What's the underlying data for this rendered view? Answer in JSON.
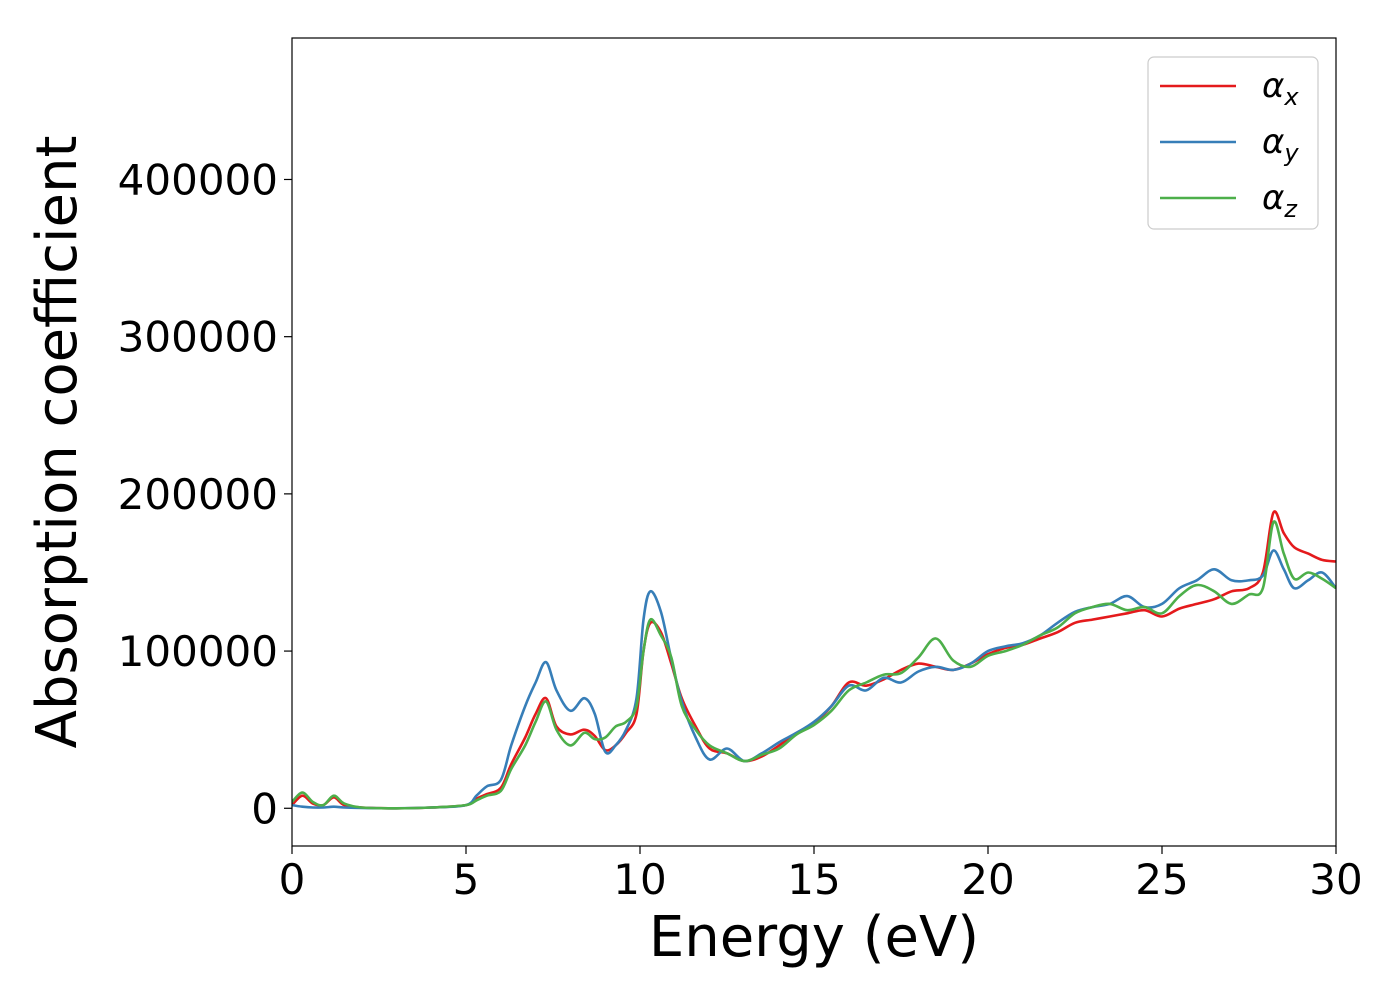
{
  "chart_data": {
    "type": "line",
    "title": "",
    "xlabel": "Energy (eV)",
    "ylabel": "Absorption coefficient",
    "xlim": [
      0,
      30
    ],
    "ylim": [
      -24000,
      490000
    ],
    "xticks": [
      0,
      5,
      10,
      15,
      20,
      25,
      30
    ],
    "yticks": [
      0,
      100000,
      200000,
      300000,
      400000
    ],
    "grid": false,
    "legend_position": "top-right",
    "series": [
      {
        "name": "αx",
        "symbol": "α",
        "subscript": "x",
        "color": "#e41a1c",
        "x": [
          0,
          0.3,
          0.6,
          0.9,
          1.2,
          1.5,
          2,
          3,
          4,
          5,
          5.3,
          5.6,
          6,
          6.3,
          6.7,
          7,
          7.3,
          7.6,
          8,
          8.4,
          8.7,
          9,
          9.3,
          9.6,
          9.9,
          10.1,
          10.3,
          10.6,
          10.9,
          11.2,
          11.6,
          12,
          12.5,
          13,
          13.5,
          14,
          14.5,
          15,
          15.5,
          16,
          16.5,
          17,
          17.5,
          18,
          18.5,
          19,
          19.5,
          20,
          20.5,
          21,
          21.5,
          22,
          22.5,
          23,
          23.5,
          24,
          24.5,
          25,
          25.5,
          26,
          26.5,
          27,
          27.5,
          27.9,
          28.2,
          28.5,
          28.8,
          29.2,
          29.6,
          30
        ],
        "values": [
          2000,
          8000,
          3000,
          2000,
          7000,
          2000,
          500,
          0,
          500,
          2000,
          6000,
          9000,
          13000,
          28000,
          45000,
          60000,
          70000,
          52000,
          47000,
          50000,
          46000,
          37000,
          40000,
          48000,
          60000,
          100000,
          118000,
          112000,
          92000,
          70000,
          52000,
          38000,
          35000,
          30000,
          33000,
          40000,
          48000,
          54000,
          65000,
          80000,
          78000,
          82000,
          88000,
          92000,
          90000,
          88000,
          92000,
          98000,
          102000,
          104000,
          108000,
          112000,
          118000,
          120000,
          122000,
          124000,
          126000,
          122000,
          127000,
          130000,
          133000,
          138000,
          140000,
          150000,
          188000,
          175000,
          166000,
          162000,
          158000,
          157000
        ]
      },
      {
        "name": "αy",
        "symbol": "α",
        "subscript": "y",
        "color": "#377eb8",
        "x": [
          0,
          0.3,
          0.6,
          0.9,
          1.2,
          1.5,
          2,
          3,
          4,
          5,
          5.3,
          5.6,
          6,
          6.3,
          6.7,
          7,
          7.3,
          7.6,
          8,
          8.4,
          8.7,
          9,
          9.3,
          9.6,
          9.9,
          10.1,
          10.3,
          10.6,
          10.9,
          11.2,
          11.6,
          12,
          12.5,
          13,
          13.5,
          14,
          14.5,
          15,
          15.5,
          16,
          16.5,
          17,
          17.5,
          18,
          18.5,
          19,
          19.5,
          20,
          20.5,
          21,
          21.5,
          22,
          22.5,
          23,
          23.5,
          24,
          24.5,
          25,
          25.5,
          26,
          26.5,
          27,
          27.5,
          27.9,
          28.2,
          28.5,
          28.8,
          29.2,
          29.6,
          30
        ],
        "values": [
          2000,
          1000,
          500,
          500,
          1000,
          500,
          200,
          0,
          500,
          2000,
          8000,
          14000,
          18000,
          40000,
          65000,
          80000,
          93000,
          75000,
          62000,
          70000,
          60000,
          36000,
          40000,
          50000,
          70000,
          120000,
          138000,
          125000,
          95000,
          68000,
          45000,
          31000,
          38000,
          30000,
          35000,
          42000,
          48000,
          55000,
          65000,
          78000,
          75000,
          83000,
          80000,
          87000,
          90000,
          88000,
          92000,
          100000,
          103000,
          105000,
          110000,
          118000,
          125000,
          128000,
          130000,
          135000,
          128000,
          130000,
          140000,
          145000,
          152000,
          145000,
          145000,
          148000,
          164000,
          152000,
          140000,
          145000,
          150000,
          140000
        ]
      },
      {
        "name": "αz",
        "symbol": "α",
        "subscript": "z",
        "color": "#4daf4a",
        "x": [
          0,
          0.3,
          0.6,
          0.9,
          1.2,
          1.5,
          2,
          3,
          4,
          5,
          5.3,
          5.6,
          6,
          6.3,
          6.7,
          7,
          7.3,
          7.6,
          8,
          8.4,
          8.7,
          9,
          9.3,
          9.6,
          9.9,
          10.1,
          10.3,
          10.6,
          10.9,
          11.2,
          11.6,
          12,
          12.5,
          13,
          13.5,
          14,
          14.5,
          15,
          15.5,
          16,
          16.5,
          17,
          17.5,
          18,
          18.5,
          19,
          19.5,
          20,
          20.5,
          21,
          21.5,
          22,
          22.5,
          23,
          23.5,
          24,
          24.5,
          25,
          25.5,
          26,
          26.5,
          27,
          27.5,
          27.9,
          28.2,
          28.5,
          28.8,
          29.2,
          29.6,
          30
        ],
        "values": [
          4000,
          10000,
          4000,
          2000,
          8000,
          3000,
          500,
          0,
          500,
          2000,
          5000,
          8000,
          11000,
          25000,
          40000,
          55000,
          68000,
          50000,
          40000,
          48000,
          44000,
          45000,
          52000,
          55000,
          65000,
          100000,
          120000,
          110000,
          96000,
          65000,
          50000,
          40000,
          35000,
          30000,
          34000,
          38000,
          47000,
          53000,
          62000,
          75000,
          80000,
          85000,
          86000,
          96000,
          108000,
          94000,
          90000,
          97000,
          100000,
          104000,
          110000,
          115000,
          124000,
          128000,
          130000,
          126000,
          128000,
          124000,
          135000,
          142000,
          138000,
          130000,
          136000,
          140000,
          182000,
          162000,
          146000,
          150000,
          146000,
          140000
        ]
      }
    ]
  }
}
